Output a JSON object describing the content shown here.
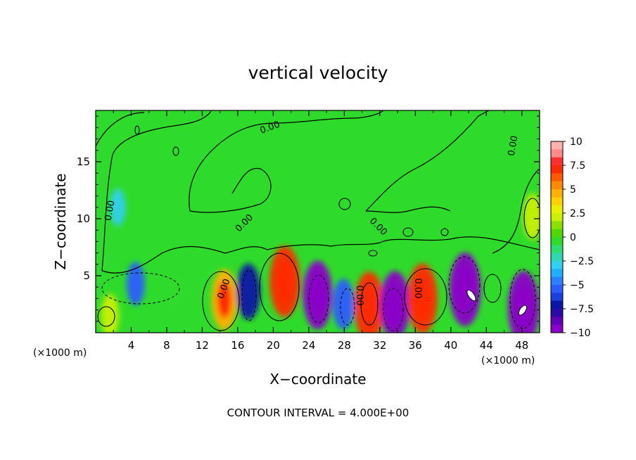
{
  "chart_data": {
    "type": "heatmap",
    "title": "vertical velocity",
    "xlabel": "X−coordinate",
    "ylabel": "Z−coordinate",
    "x_units_left": "(×1000 m)",
    "x_units_right": "(×1000 m)",
    "footer": "CONTOUR INTERVAL = 4.000E+00",
    "xlim": [
      0,
      50
    ],
    "ylim": [
      0,
      19.5
    ],
    "xticks": [
      "4",
      "8",
      "12",
      "16",
      "20",
      "24",
      "28",
      "32",
      "36",
      "40",
      "44",
      "48"
    ],
    "yticks": [
      "5",
      "10",
      "15"
    ],
    "colorbar": {
      "ticks": [
        "10",
        "7.5",
        "5",
        "2.5",
        "0",
        "−2.5",
        "−5",
        "−7.5",
        "−10"
      ],
      "range": [
        -10,
        10
      ]
    },
    "contour_labels": [
      "0.00",
      "0.00",
      "0.00",
      "0.00",
      "0.00",
      "0.00",
      "0.00",
      "0.00"
    ],
    "cells": [
      {
        "x": 14.5,
        "z": 2.9,
        "value": 6.5
      },
      {
        "x": 17.2,
        "z": 3.6,
        "value": -5.5
      },
      {
        "x": 21.3,
        "z": 4.5,
        "value": 8.5
      },
      {
        "x": 25.0,
        "z": 3.3,
        "value": -8.0
      },
      {
        "x": 27.9,
        "z": 2.5,
        "value": -4.5
      },
      {
        "x": 30.8,
        "z": 2.3,
        "value": 8.2
      },
      {
        "x": 33.7,
        "z": 2.4,
        "value": -8.0
      },
      {
        "x": 36.8,
        "z": 3.0,
        "value": 8.3
      },
      {
        "x": 41.6,
        "z": 3.8,
        "value": -9.0
      },
      {
        "x": 48.2,
        "z": 2.2,
        "value": -9.0
      },
      {
        "x": 49.2,
        "z": 10.2,
        "value": 3.5
      },
      {
        "x": 1.6,
        "z": 1.5,
        "value": 3.0
      },
      {
        "x": 4.5,
        "z": 4.3,
        "value": -3.0
      },
      {
        "x": 2.5,
        "z": 11.0,
        "value": -1.8
      },
      {
        "x": 9.0,
        "z": 3.5,
        "value": 1.8
      }
    ]
  }
}
